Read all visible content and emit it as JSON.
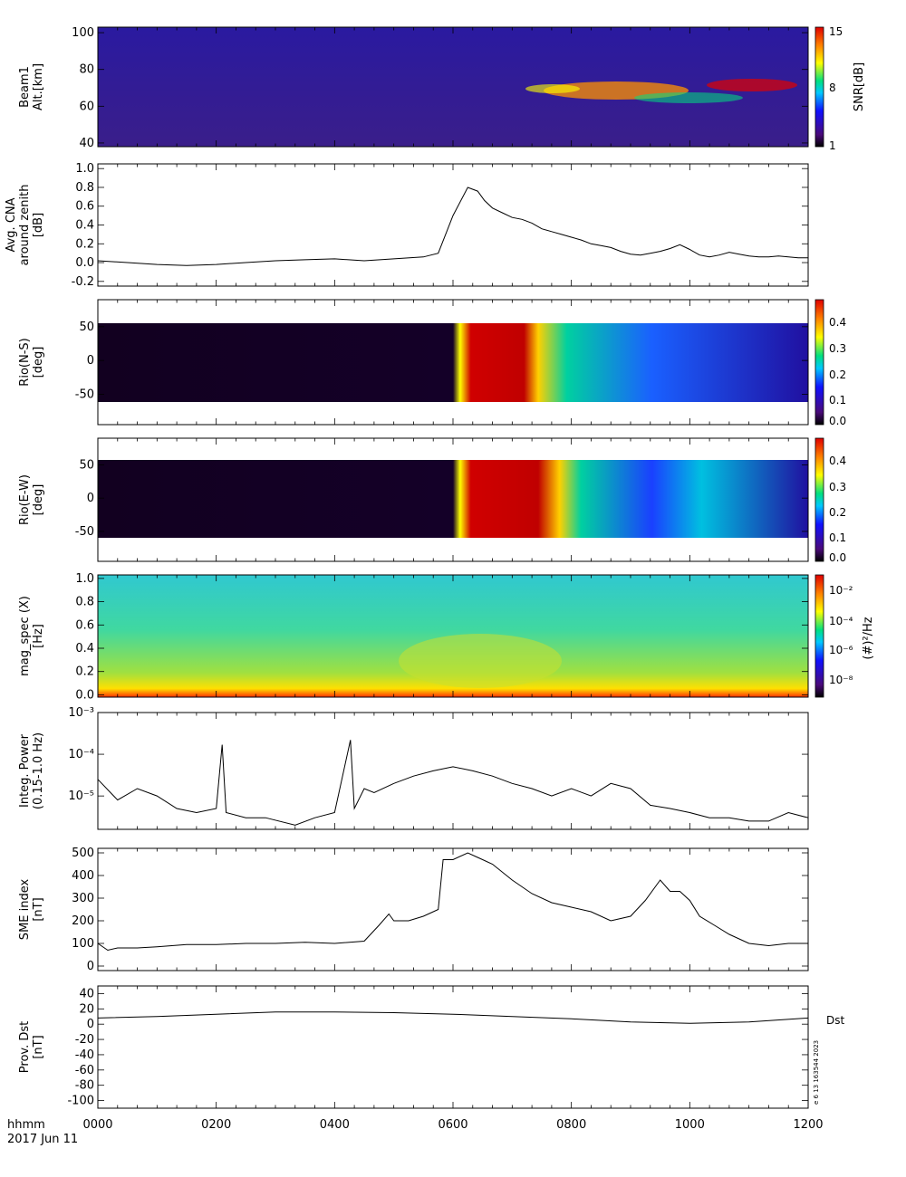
{
  "chart_data": [
    {
      "type": "heatmap",
      "panel": "beam",
      "ylabel": [
        "Beam1",
        "Alt.[km]"
      ],
      "ylim": [
        38,
        103
      ],
      "yticks": [
        40,
        60,
        80,
        100
      ],
      "colorbar": {
        "label": "SNR[dB]",
        "ticks": [
          "1",
          "8",
          "15"
        ],
        "range": [
          1,
          15
        ]
      },
      "description_values": {
        "background_snr": 2,
        "enhanced_layer_alt_km": [
          60,
          76
        ],
        "enhanced_layer_time_hhmm": [
          "0645",
          "1200"
        ]
      }
    },
    {
      "type": "line",
      "panel": "cna",
      "ylabel": [
        "Avg. CNA",
        "around zenith",
        "[dB]"
      ],
      "ylim": [
        -0.25,
        1.05
      ],
      "yticks": [
        -0.2,
        0.0,
        0.2,
        0.4,
        0.6,
        0.8,
        1.0
      ],
      "x": [
        0,
        30,
        60,
        90,
        120,
        150,
        180,
        210,
        240,
        270,
        300,
        330,
        345,
        360,
        375,
        385,
        392,
        400,
        410,
        420,
        430,
        440,
        450,
        460,
        470,
        480,
        490,
        500,
        510,
        520,
        530,
        540,
        550,
        560,
        570,
        580,
        590,
        600,
        610,
        620,
        630,
        640,
        650,
        660,
        670,
        680,
        690,
        700,
        710,
        720
      ],
      "values": [
        0.02,
        0.0,
        -0.02,
        -0.03,
        -0.02,
        0.0,
        0.02,
        0.03,
        0.04,
        0.02,
        0.04,
        0.06,
        0.1,
        0.5,
        0.8,
        0.76,
        0.66,
        0.58,
        0.53,
        0.48,
        0.46,
        0.42,
        0.36,
        0.33,
        0.3,
        0.27,
        0.24,
        0.2,
        0.18,
        0.16,
        0.12,
        0.09,
        0.08,
        0.1,
        0.12,
        0.15,
        0.19,
        0.14,
        0.08,
        0.06,
        0.08,
        0.11,
        0.09,
        0.07,
        0.06,
        0.06,
        0.07,
        0.06,
        0.05,
        0.05
      ]
    },
    {
      "type": "heatmap",
      "panel": "rio_ns",
      "ylabel": [
        "Rio(N-S)",
        "[deg]"
      ],
      "ylim": [
        -95,
        90
      ],
      "yticks": [
        -50,
        0,
        50
      ],
      "colorbar": {
        "label": "",
        "ticks": [
          "0.0",
          "0.1",
          "0.2",
          "0.3",
          "0.4"
        ],
        "range": [
          0,
          0.48
        ]
      },
      "description_values": {
        "absorption_onset_hhmm": "0610",
        "peak_absorption_db": 0.48
      }
    },
    {
      "type": "heatmap",
      "panel": "rio_ew",
      "ylabel": [
        "Rio(E-W)",
        "[deg]"
      ],
      "ylim": [
        -95,
        90
      ],
      "yticks": [
        -50,
        0,
        50
      ],
      "colorbar": {
        "label": "",
        "ticks": [
          "0.0",
          "0.1",
          "0.2",
          "0.3",
          "0.4"
        ],
        "range": [
          0,
          0.48
        ]
      },
      "description_values": {
        "absorption_onset_hhmm": "0610",
        "peak_absorption_db": 0.48
      }
    },
    {
      "type": "heatmap",
      "panel": "magspec",
      "ylabel": [
        "mag_spec (X)",
        "[Hz]"
      ],
      "ylim": [
        -0.02,
        1.03
      ],
      "yticks": [
        0.0,
        0.2,
        0.4,
        0.6,
        0.8,
        1.0
      ],
      "colorbar": {
        "label": "(#)²/Hz",
        "ticks": [
          "10⁻⁸",
          "10⁻⁶",
          "10⁻⁴",
          "10⁻²"
        ],
        "range_log10": [
          -9,
          -1.5
        ]
      }
    },
    {
      "type": "line",
      "panel": "integ",
      "ylabel": [
        "Integ. Power",
        "(0.15-1.0 Hz)"
      ],
      "ylim_log10": [
        -5.8,
        -3
      ],
      "yticks": [
        "10⁻⁵",
        "10⁻⁴",
        "10⁻³"
      ],
      "x": [
        0,
        20,
        40,
        60,
        80,
        100,
        120,
        126,
        130,
        150,
        170,
        200,
        220,
        240,
        256,
        260,
        270,
        280,
        300,
        320,
        340,
        360,
        380,
        400,
        420,
        440,
        460,
        480,
        500,
        520,
        540,
        560,
        580,
        600,
        620,
        640,
        660,
        680,
        700,
        720
      ],
      "values": [
        2.5e-05,
        8e-06,
        1.5e-05,
        1e-05,
        5e-06,
        4e-06,
        5e-06,
        0.00017,
        4e-06,
        3e-06,
        3e-06,
        2e-06,
        3e-06,
        4e-06,
        0.00022,
        5e-06,
        1.5e-05,
        1.2e-05,
        2e-05,
        3e-05,
        4e-05,
        5e-05,
        4e-05,
        3e-05,
        2e-05,
        1.5e-05,
        1e-05,
        1.5e-05,
        1e-05,
        2e-05,
        1.5e-05,
        6e-06,
        5e-06,
        4e-06,
        3e-06,
        3e-06,
        2.5e-06,
        2.5e-06,
        4e-06,
        3e-06
      ]
    },
    {
      "type": "line",
      "panel": "sme",
      "ylabel": [
        "SME index",
        "[nT]"
      ],
      "ylim": [
        -20,
        520
      ],
      "yticks": [
        0,
        100,
        200,
        300,
        400,
        500
      ],
      "x": [
        0,
        10,
        20,
        40,
        60,
        90,
        120,
        150,
        180,
        210,
        240,
        270,
        285,
        295,
        300,
        315,
        330,
        345,
        350,
        360,
        375,
        385,
        390,
        400,
        420,
        440,
        460,
        480,
        500,
        520,
        540,
        555,
        570,
        580,
        590,
        600,
        610,
        625,
        640,
        660,
        680,
        700,
        720
      ],
      "values": [
        100,
        70,
        80,
        80,
        85,
        95,
        95,
        100,
        100,
        105,
        100,
        110,
        180,
        230,
        200,
        200,
        220,
        250,
        470,
        470,
        500,
        480,
        470,
        450,
        380,
        320,
        280,
        260,
        240,
        200,
        220,
        290,
        380,
        330,
        330,
        290,
        220,
        180,
        140,
        100,
        90,
        100,
        100
      ]
    },
    {
      "type": "line",
      "panel": "dst",
      "ylabel": [
        "Prov. Dst",
        "[nT]"
      ],
      "ylim": [
        -110,
        50
      ],
      "yticks": [
        -100,
        -80,
        -60,
        -40,
        -20,
        0,
        20,
        40
      ],
      "x": [
        0,
        60,
        120,
        180,
        240,
        300,
        360,
        420,
        480,
        540,
        600,
        660,
        720
      ],
      "values": [
        8,
        10,
        13,
        16,
        16,
        15,
        13,
        10,
        7,
        3,
        1,
        3,
        8
      ],
      "series_label": "Dst"
    }
  ],
  "x_axis": {
    "ticks": [
      "0000",
      "0200",
      "0400",
      "0600",
      "0800",
      "1000",
      "1200"
    ],
    "label": "hhmm",
    "date": "2017 Jun 11"
  },
  "stamp": "e 6 13 163544 2023"
}
